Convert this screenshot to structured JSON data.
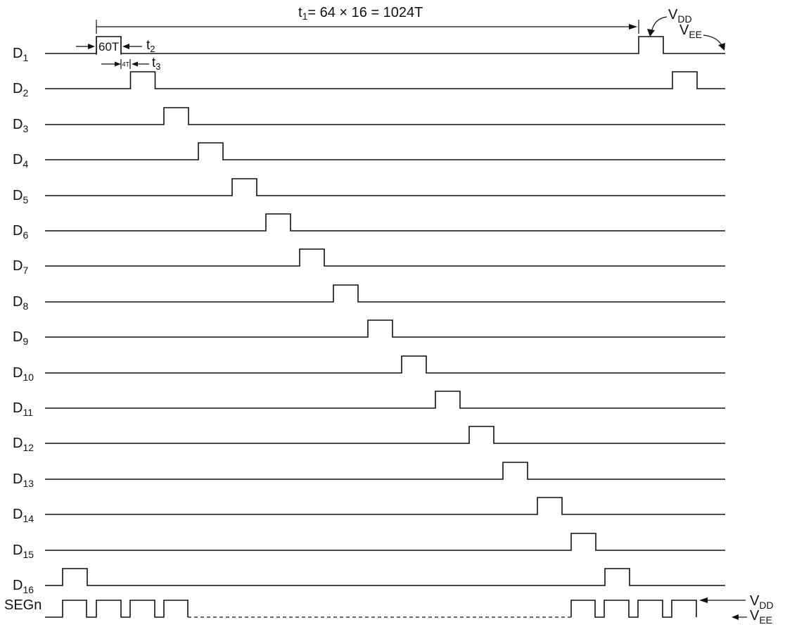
{
  "annotations": {
    "t1": {
      "main": "t",
      "sub": "1",
      "rest": "= 64 × 16 = 1024T"
    },
    "pulse_width": "60T",
    "t2": {
      "main": "t",
      "sub": "2"
    },
    "gap": "4T",
    "t3": {
      "main": "t",
      "sub": "3"
    },
    "vdd": {
      "main": "V",
      "sub": "DD"
    },
    "vee": {
      "main": "V",
      "sub": "EE"
    }
  },
  "rows": [
    {
      "main": "D",
      "sub": "1"
    },
    {
      "main": "D",
      "sub": "2"
    },
    {
      "main": "D",
      "sub": "3"
    },
    {
      "main": "D",
      "sub": "4"
    },
    {
      "main": "D",
      "sub": "5"
    },
    {
      "main": "D",
      "sub": "6"
    },
    {
      "main": "D",
      "sub": "7"
    },
    {
      "main": "D",
      "sub": "8"
    },
    {
      "main": "D",
      "sub": "9"
    },
    {
      "main": "D",
      "sub": "10"
    },
    {
      "main": "D",
      "sub": "11"
    },
    {
      "main": "D",
      "sub": "12"
    },
    {
      "main": "D",
      "sub": "13"
    },
    {
      "main": "D",
      "sub": "14"
    },
    {
      "main": "D",
      "sub": "15"
    },
    {
      "main": "D",
      "sub": "16"
    }
  ],
  "segment": {
    "label": "SEGn"
  },
  "colors": {
    "ink": "#111111",
    "background": "#ffffff"
  }
}
